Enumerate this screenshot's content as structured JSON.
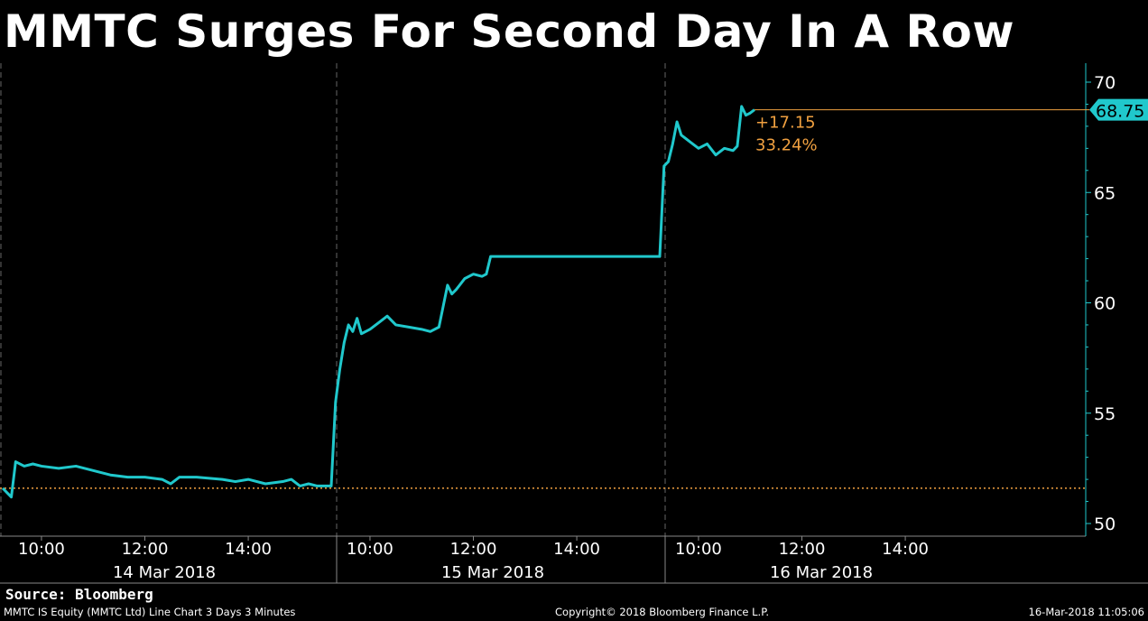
{
  "title": "MMTC Surges For Second Day In A Row",
  "source": "Source: Bloomberg",
  "footer": {
    "left": "MMTC IS Equity (MMTC Ltd) Line Chart 3 Days 3 Minutes",
    "center": "Copyright© 2018 Bloomberg Finance L.P.",
    "right": "16-Mar-2018 11:05:06"
  },
  "colors": {
    "line": "#20c8cc",
    "reference": "#f0a040",
    "background": "#000000",
    "text": "#ffffff"
  },
  "chart_data": {
    "type": "line",
    "title": "MMTC Surges For Second Day In A Row",
    "ylim": [
      50,
      70
    ],
    "yticks": [
      50,
      55,
      60,
      65,
      70
    ],
    "y_axis_side": "right",
    "grid": false,
    "days": [
      {
        "label": "14 Mar 2018",
        "time_ticks": [
          "10:00",
          "12:00",
          "14:00"
        ]
      },
      {
        "label": "15 Mar 2018",
        "time_ticks": [
          "10:00",
          "12:00",
          "14:00"
        ]
      },
      {
        "label": "16 Mar 2018",
        "time_ticks": [
          "10:00",
          "12:00",
          "14:00"
        ]
      }
    ],
    "session": {
      "open": "09:15",
      "close": "15:30"
    },
    "reference_line": {
      "value": 51.6,
      "style": "dotted"
    },
    "last_price": {
      "value": 68.75,
      "label": "68.75"
    },
    "change_label": "+17.15",
    "change_pct_label": "33.24%",
    "series": [
      {
        "points": [
          [
            "14 Mar 09:15",
            51.6
          ],
          [
            "14 Mar 09:20",
            51.4
          ],
          [
            "14 Mar 09:25",
            51.2
          ],
          [
            "14 Mar 09:30",
            52.8
          ],
          [
            "14 Mar 09:40",
            52.6
          ],
          [
            "14 Mar 09:50",
            52.7
          ],
          [
            "14 Mar 10:00",
            52.6
          ],
          [
            "14 Mar 10:20",
            52.5
          ],
          [
            "14 Mar 10:40",
            52.6
          ],
          [
            "14 Mar 11:00",
            52.4
          ],
          [
            "14 Mar 11:20",
            52.2
          ],
          [
            "14 Mar 11:40",
            52.1
          ],
          [
            "14 Mar 12:00",
            52.1
          ],
          [
            "14 Mar 12:20",
            52.0
          ],
          [
            "14 Mar 12:30",
            51.8
          ],
          [
            "14 Mar 12:40",
            52.1
          ],
          [
            "14 Mar 13:00",
            52.1
          ],
          [
            "14 Mar 13:30",
            52.0
          ],
          [
            "14 Mar 13:45",
            51.9
          ],
          [
            "14 Mar 14:00",
            52.0
          ],
          [
            "14 Mar 14:20",
            51.8
          ],
          [
            "14 Mar 14:40",
            51.9
          ],
          [
            "14 Mar 14:50",
            52.0
          ],
          [
            "14 Mar 15:00",
            51.7
          ],
          [
            "14 Mar 15:10",
            51.8
          ],
          [
            "14 Mar 15:20",
            51.7
          ],
          [
            "14 Mar 15:30",
            51.7
          ],
          [
            "15 Mar 09:15",
            51.7
          ],
          [
            "15 Mar 09:20",
            55.5
          ],
          [
            "15 Mar 09:25",
            57.0
          ],
          [
            "15 Mar 09:30",
            58.2
          ],
          [
            "15 Mar 09:35",
            59.0
          ],
          [
            "15 Mar 09:40",
            58.7
          ],
          [
            "15 Mar 09:45",
            59.3
          ],
          [
            "15 Mar 09:50",
            58.6
          ],
          [
            "15 Mar 10:00",
            58.8
          ],
          [
            "15 Mar 10:10",
            59.1
          ],
          [
            "15 Mar 10:20",
            59.4
          ],
          [
            "15 Mar 10:30",
            59.0
          ],
          [
            "15 Mar 10:45",
            58.9
          ],
          [
            "15 Mar 11:00",
            58.8
          ],
          [
            "15 Mar 11:10",
            58.7
          ],
          [
            "15 Mar 11:20",
            58.9
          ],
          [
            "15 Mar 11:30",
            60.8
          ],
          [
            "15 Mar 11:35",
            60.4
          ],
          [
            "15 Mar 11:40",
            60.6
          ],
          [
            "15 Mar 11:50",
            61.1
          ],
          [
            "15 Mar 12:00",
            61.3
          ],
          [
            "15 Mar 12:10",
            61.2
          ],
          [
            "15 Mar 12:15",
            61.3
          ],
          [
            "15 Mar 12:20",
            62.1
          ],
          [
            "15 Mar 13:00",
            62.1
          ],
          [
            "15 Mar 14:00",
            62.1
          ],
          [
            "15 Mar 15:00",
            62.1
          ],
          [
            "15 Mar 15:30",
            62.1
          ],
          [
            "16 Mar 09:15",
            62.1
          ],
          [
            "16 Mar 09:20",
            66.2
          ],
          [
            "16 Mar 09:25",
            66.4
          ],
          [
            "16 Mar 09:30",
            67.2
          ],
          [
            "16 Mar 09:35",
            68.2
          ],
          [
            "16 Mar 09:40",
            67.6
          ],
          [
            "16 Mar 09:50",
            67.3
          ],
          [
            "16 Mar 10:00",
            67.0
          ],
          [
            "16 Mar 10:10",
            67.2
          ],
          [
            "16 Mar 10:20",
            66.7
          ],
          [
            "16 Mar 10:30",
            67.0
          ],
          [
            "16 Mar 10:40",
            66.9
          ],
          [
            "16 Mar 10:45",
            67.1
          ],
          [
            "16 Mar 10:50",
            68.9
          ],
          [
            "16 Mar 10:55",
            68.5
          ],
          [
            "16 Mar 11:00",
            68.6
          ],
          [
            "16 Mar 11:05",
            68.75
          ]
        ]
      }
    ]
  }
}
